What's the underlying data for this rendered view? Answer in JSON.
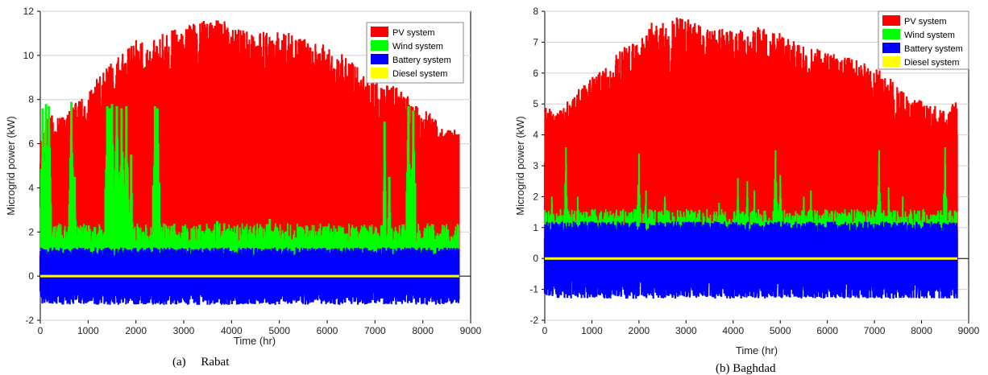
{
  "chart_data": [
    {
      "type": "area",
      "caption": "(a)     Rabat",
      "xlabel": "Time (hr)",
      "ylabel": "Microgrid power (kW)",
      "xlim": [
        0,
        9000
      ],
      "ylim": [
        -2,
        12
      ],
      "xticks": [
        0,
        1000,
        2000,
        3000,
        4000,
        5000,
        6000,
        7000,
        8000,
        9000
      ],
      "yticks": [
        -2,
        0,
        2,
        4,
        6,
        8,
        10,
        12
      ],
      "grid": true,
      "legend_position": "top-right",
      "data_end_hr": 8760,
      "series": [
        {
          "name": "PV system",
          "color": "#ff0000",
          "envelope_x": [
            0,
            200,
            500,
            800,
            1000,
            1200,
            1500,
            1800,
            2000,
            2200,
            2500,
            2800,
            3000,
            3300,
            3700,
            4000,
            4500,
            5000,
            5500,
            6000,
            6500,
            7000,
            7500,
            8000,
            8400,
            8760
          ],
          "envelope_max": [
            6.5,
            7.5,
            7.2,
            8.0,
            8.3,
            9.0,
            9.8,
            10.2,
            10.8,
            10.5,
            11.0,
            11.2,
            11.4,
            11.5,
            11.8,
            11.3,
            11.0,
            11.2,
            10.8,
            10.5,
            9.8,
            9.0,
            8.5,
            7.6,
            7.0,
            6.6
          ]
        },
        {
          "name": "Wind system",
          "color": "#00ff00",
          "peaks_x": [
            50,
            120,
            180,
            650,
            720,
            1400,
            1450,
            1500,
            1600,
            1700,
            1800,
            1900,
            2400,
            2450,
            3700,
            4800,
            6300,
            7200,
            7300,
            7700,
            7800
          ],
          "peaks_y": [
            7.6,
            7.8,
            7.7,
            7.9,
            4.5,
            7.7,
            7.6,
            7.8,
            7.7,
            7.6,
            7.7,
            5.5,
            7.7,
            7.6,
            2.5,
            2.6,
            2.2,
            7.0,
            4.5,
            7.7,
            7.5
          ]
        },
        {
          "name": "Battery system",
          "color": "#0000ff",
          "range": [
            -1.3,
            1.3
          ]
        },
        {
          "name": "Diesel system",
          "color": "#ffff00",
          "value": 0
        }
      ]
    },
    {
      "type": "area",
      "caption": "(b) Baghdad",
      "xlabel": "Time (hr)",
      "ylabel": "Microgrid power (kW)",
      "xlim": [
        0,
        9000
      ],
      "ylim": [
        -2,
        8
      ],
      "xticks": [
        0,
        1000,
        2000,
        3000,
        4000,
        5000,
        6000,
        7000,
        8000,
        9000
      ],
      "yticks": [
        -2,
        -1,
        0,
        1,
        2,
        3,
        4,
        5,
        6,
        7,
        8
      ],
      "grid": true,
      "legend_position": "top-right",
      "data_end_hr": 8760,
      "series": [
        {
          "name": "PV system",
          "color": "#ff0000",
          "envelope_x": [
            0,
            300,
            700,
            1000,
            1300,
            1600,
            2000,
            2300,
            2600,
            2900,
            3300,
            3700,
            4000,
            4500,
            5000,
            5500,
            6000,
            6500,
            7000,
            7300,
            7700,
            8000,
            8400,
            8760
          ],
          "envelope_max": [
            4.9,
            4.8,
            5.5,
            5.9,
            6.2,
            6.8,
            7.1,
            7.7,
            7.6,
            7.9,
            7.6,
            7.5,
            7.4,
            7.5,
            7.3,
            6.9,
            6.7,
            6.5,
            6.2,
            5.9,
            5.3,
            5.1,
            4.9,
            5.1
          ]
        },
        {
          "name": "Wind system",
          "color": "#00ff00",
          "peaks_x": [
            150,
            450,
            700,
            2000,
            2150,
            2550,
            3700,
            4100,
            4300,
            4450,
            4900,
            5000,
            5500,
            5650,
            7100,
            7300,
            7600,
            8500
          ],
          "peaks_y": [
            2.0,
            3.6,
            2.0,
            3.4,
            2.2,
            2.0,
            1.8,
            2.6,
            2.5,
            2.2,
            3.5,
            2.7,
            2.0,
            2.2,
            3.5,
            2.3,
            2.0,
            3.6
          ]
        },
        {
          "name": "Battery system",
          "color": "#0000ff",
          "range": [
            -1.3,
            1.2
          ]
        },
        {
          "name": "Diesel system",
          "color": "#ffff00",
          "value": 0
        }
      ]
    }
  ]
}
